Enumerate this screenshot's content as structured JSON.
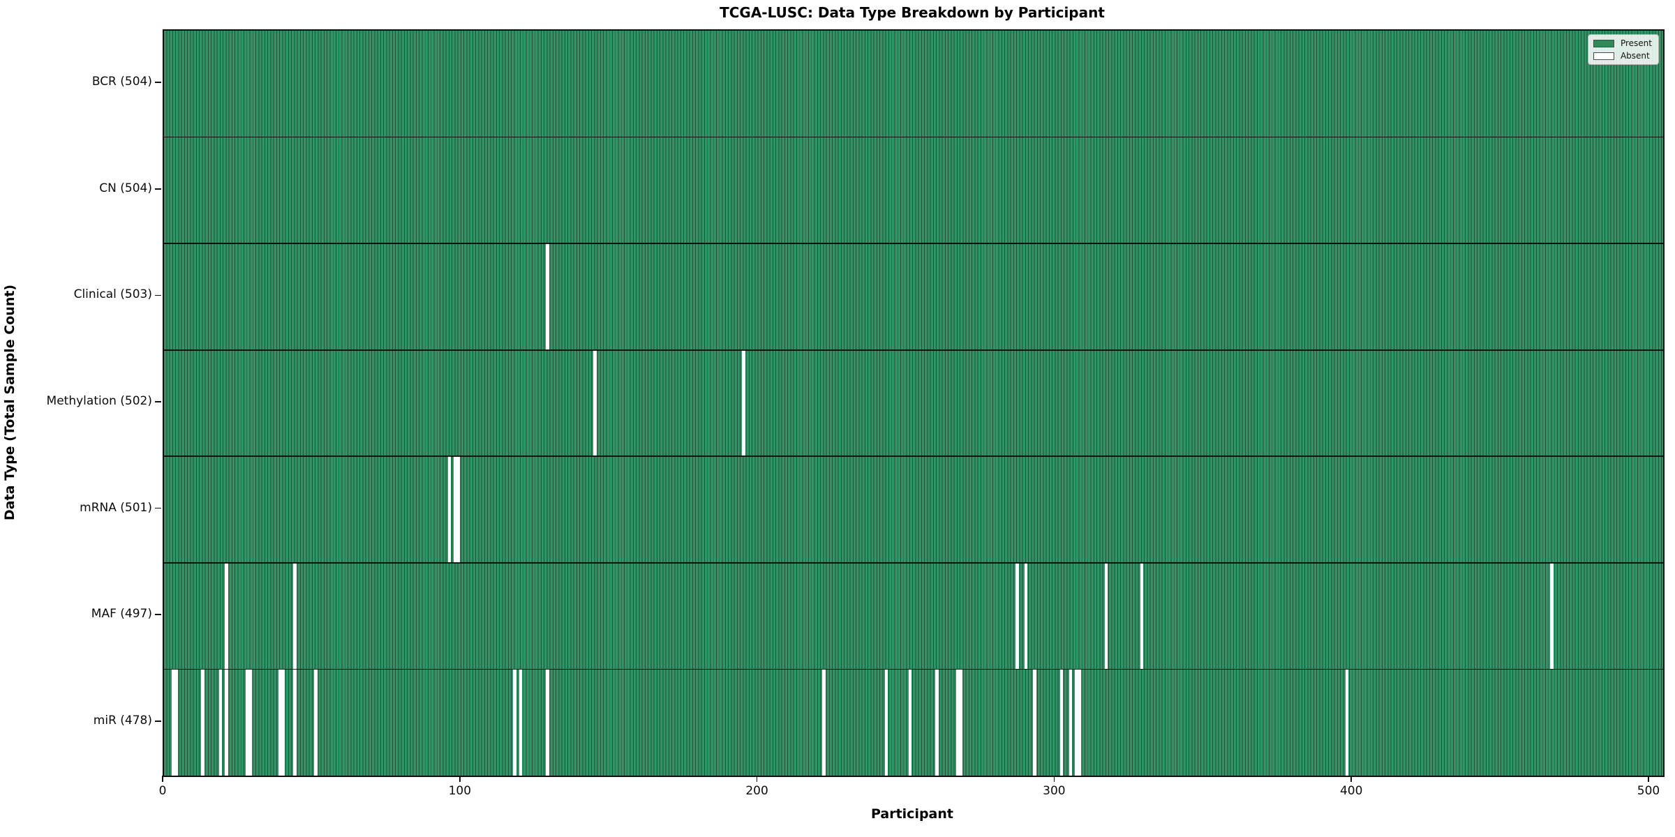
{
  "title": "TCGA-LUSC: Data Type Breakdown by Participant",
  "xlabel": "Participant",
  "ylabel": "Data Type (Total Sample Count)",
  "legend": {
    "present_label": "Present",
    "absent_label": "Absent"
  },
  "colors": {
    "present_fill": "#349267",
    "present_edge_stripe": "#1d5339",
    "absent_fill": "#ffffff",
    "legend_present_swatch": "#2e8b57",
    "legend_absent_swatch": "#ffffff",
    "axis_line": "#0f0f0f"
  },
  "chart_data": {
    "type": "heatmap",
    "title": "TCGA-LUSC: Data Type Breakdown by Participant",
    "xlabel": "Participant",
    "ylabel": "Data Type (Total Sample Count)",
    "legend_position": "upper right",
    "grid": false,
    "n_participants": 504,
    "x_ticks": [
      0,
      100,
      200,
      300,
      400,
      500
    ],
    "xlim": [
      0,
      504
    ],
    "legend": [
      {
        "label": "Present",
        "color": "#2e8b57"
      },
      {
        "label": "Absent",
        "color": "#ffffff"
      }
    ],
    "rows": [
      {
        "name": "BCR",
        "label": "BCR (504)",
        "total_samples": 504,
        "absent_participants": []
      },
      {
        "name": "CN",
        "label": "CN (504)",
        "total_samples": 504,
        "absent_participants": []
      },
      {
        "name": "Clinical",
        "label": "Clinical (503)",
        "total_samples": 503,
        "absent_participants": [
          129
        ]
      },
      {
        "name": "Methylation",
        "label": "Methylation (502)",
        "total_samples": 502,
        "absent_participants": [
          145,
          195
        ]
      },
      {
        "name": "mRNA",
        "label": "mRNA (501)",
        "total_samples": 501,
        "absent_participants": [
          96,
          98,
          99
        ]
      },
      {
        "name": "MAF",
        "label": "MAF (497)",
        "total_samples": 497,
        "absent_participants": [
          21,
          44,
          287,
          290,
          317,
          329,
          467
        ]
      },
      {
        "name": "miR",
        "label": "miR (478)",
        "total_samples": 478,
        "absent_participants": [
          3,
          4,
          13,
          19,
          21,
          28,
          29,
          39,
          40,
          44,
          51,
          118,
          120,
          129,
          222,
          243,
          251,
          260,
          267,
          268,
          293,
          302,
          305,
          307,
          308,
          398
        ]
      }
    ]
  }
}
